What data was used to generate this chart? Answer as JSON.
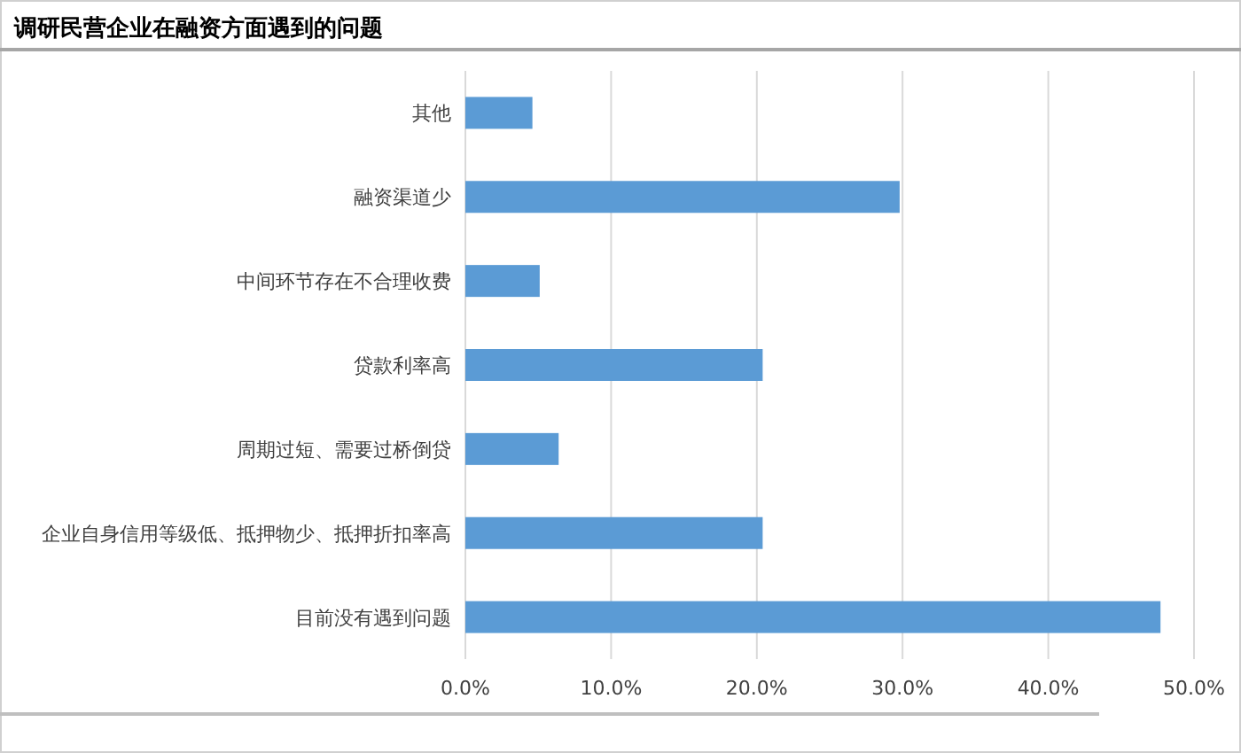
{
  "chart_data": {
    "type": "bar",
    "orientation": "horizontal",
    "title": "调研民营企业在融资方面遇到的问题",
    "categories": [
      "其他",
      "融资渠道少",
      "中间环节存在不合理收费",
      "贷款利率高",
      "周期过短、需要过桥倒贷",
      "企业自身信用等级低、抵押物少、抵押折扣率高",
      "目前没有遇到问题"
    ],
    "values": [
      4.6,
      29.8,
      5.1,
      20.4,
      6.4,
      20.4,
      47.7
    ],
    "color": "#5b9bd5",
    "xlim": [
      0,
      50
    ],
    "xticks": [
      {
        "value": 0,
        "label": "0.0%"
      },
      {
        "value": 10,
        "label": "10.0%"
      },
      {
        "value": 20,
        "label": "20.0%"
      },
      {
        "value": 30,
        "label": "30.0%"
      },
      {
        "value": 40,
        "label": "40.0%"
      },
      {
        "value": 50,
        "label": "50.0%"
      }
    ],
    "grid": "x"
  }
}
